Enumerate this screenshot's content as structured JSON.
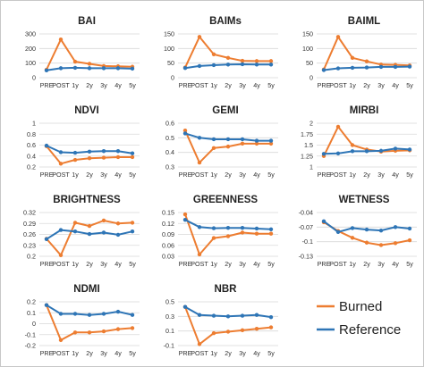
{
  "chart_data": [
    {
      "type": "line",
      "title": "BAI",
      "categories": [
        "PRE",
        "POST",
        "1y",
        "2y",
        "3y",
        "4y",
        "5y"
      ],
      "ylim": [
        0,
        300
      ],
      "yticks": [
        "0",
        "100",
        "200",
        "300"
      ],
      "grid": true,
      "series": [
        {
          "name": "Burned",
          "values": [
            55,
            262,
            110,
            95,
            80,
            78,
            75
          ]
        },
        {
          "name": "Reference",
          "values": [
            50,
            65,
            68,
            65,
            65,
            65,
            62
          ]
        }
      ]
    },
    {
      "type": "line",
      "title": "BAIMs",
      "categories": [
        "PRE",
        "POST",
        "1y",
        "2y",
        "3y",
        "4y",
        "5y"
      ],
      "ylim": [
        0,
        150
      ],
      "yticks": [
        "0",
        "50",
        "100",
        "150"
      ],
      "grid": true,
      "series": [
        {
          "name": "Burned",
          "values": [
            35,
            140,
            80,
            68,
            58,
            57,
            57
          ]
        },
        {
          "name": "Reference",
          "values": [
            33,
            40,
            43,
            45,
            46,
            45,
            45
          ]
        }
      ]
    },
    {
      "type": "line",
      "title": "BAIML",
      "categories": [
        "PRE",
        "POST",
        "1y",
        "2y",
        "3y",
        "4y",
        "5y"
      ],
      "ylim": [
        0,
        150
      ],
      "yticks": [
        "0",
        "50",
        "100",
        "150"
      ],
      "grid": true,
      "series": [
        {
          "name": "Burned",
          "values": [
            28,
            140,
            68,
            56,
            45,
            44,
            42
          ]
        },
        {
          "name": "Reference",
          "values": [
            26,
            32,
            34,
            35,
            37,
            37,
            38
          ]
        }
      ]
    },
    {
      "type": "line",
      "title": "NDVI",
      "categories": [
        "PRE",
        "POST",
        "1y",
        "2y",
        "3y",
        "4y",
        "5y"
      ],
      "ylim": [
        0.2,
        1
      ],
      "yticks": [
        "0.2",
        "0.4",
        "0.6",
        "0.8",
        "1"
      ],
      "grid": true,
      "series": [
        {
          "name": "Burned",
          "values": [
            0.58,
            0.26,
            0.33,
            0.36,
            0.37,
            0.38,
            0.38
          ]
        },
        {
          "name": "Reference",
          "values": [
            0.59,
            0.47,
            0.46,
            0.48,
            0.49,
            0.49,
            0.45
          ]
        }
      ]
    },
    {
      "type": "line",
      "title": "GEMI",
      "categories": [
        "PRE",
        "POST",
        "1y",
        "2y",
        "3y",
        "4y",
        "5y"
      ],
      "ylim": [
        0.3,
        0.6
      ],
      "yticks": [
        "0.3",
        "0.4",
        "0.5",
        "0.6"
      ],
      "grid": true,
      "series": [
        {
          "name": "Burned",
          "values": [
            0.55,
            0.33,
            0.43,
            0.44,
            0.46,
            0.46,
            0.46
          ]
        },
        {
          "name": "Reference",
          "values": [
            0.53,
            0.5,
            0.49,
            0.49,
            0.49,
            0.48,
            0.48
          ]
        }
      ]
    },
    {
      "type": "line",
      "title": "MIRBI",
      "categories": [
        "PRE",
        "POST",
        "1y",
        "2y",
        "3y",
        "4y",
        "5y"
      ],
      "ylim": [
        1,
        2
      ],
      "yticks": [
        "1",
        "1.25",
        "1.5",
        "1.75",
        "2"
      ],
      "grid": true,
      "series": [
        {
          "name": "Burned",
          "values": [
            1.25,
            1.92,
            1.5,
            1.4,
            1.35,
            1.37,
            1.38
          ]
        },
        {
          "name": "Reference",
          "values": [
            1.3,
            1.31,
            1.36,
            1.36,
            1.37,
            1.42,
            1.4
          ]
        }
      ]
    },
    {
      "type": "line",
      "title": "BRIGHTNESS",
      "categories": [
        "PRE",
        "POST",
        "1y",
        "2y",
        "3y",
        "4y",
        "5y"
      ],
      "ylim": [
        0.2,
        0.32
      ],
      "yticks": [
        "0.2",
        "0.23",
        "0.26",
        "0.29",
        "0.32"
      ],
      "grid": true,
      "series": [
        {
          "name": "Burned",
          "values": [
            0.248,
            0.203,
            0.292,
            0.283,
            0.298,
            0.29,
            0.292
          ]
        },
        {
          "name": "Reference",
          "values": [
            0.247,
            0.272,
            0.268,
            0.261,
            0.265,
            0.259,
            0.268
          ]
        }
      ]
    },
    {
      "type": "line",
      "title": "GREENNESS",
      "categories": [
        "PRE",
        "POST",
        "1y",
        "2y",
        "3y",
        "4y",
        "5y"
      ],
      "ylim": [
        0.03,
        0.15
      ],
      "yticks": [
        "0.03",
        "0.06",
        "0.09",
        "0.12",
        "0.15"
      ],
      "grid": true,
      "series": [
        {
          "name": "Burned",
          "values": [
            0.145,
            0.035,
            0.08,
            0.085,
            0.095,
            0.092,
            0.092
          ]
        },
        {
          "name": "Reference",
          "values": [
            0.13,
            0.11,
            0.107,
            0.108,
            0.108,
            0.106,
            0.104
          ]
        }
      ]
    },
    {
      "type": "line",
      "title": "WETNESS",
      "categories": [
        "PRE",
        "POST",
        "1y",
        "2y",
        "3y",
        "4y",
        "5y"
      ],
      "ylim": [
        -0.13,
        -0.04
      ],
      "yticks": [
        "-0.13",
        "-0.1",
        "-0.07",
        "-0.04"
      ],
      "grid": true,
      "series": [
        {
          "name": "Burned",
          "values": [
            -0.06,
            -0.078,
            -0.092,
            -0.102,
            -0.107,
            -0.103,
            -0.097
          ]
        },
        {
          "name": "Reference",
          "values": [
            -0.058,
            -0.08,
            -0.072,
            -0.075,
            -0.077,
            -0.07,
            -0.073
          ]
        }
      ]
    },
    {
      "type": "line",
      "title": "NDMI",
      "categories": [
        "PRE",
        "POST",
        "1y",
        "2y",
        "3y",
        "4y",
        "5y"
      ],
      "ylim": [
        -0.2,
        0.2
      ],
      "yticks": [
        "-0.2",
        "-0.1",
        "0",
        "0.1",
        "0.2"
      ],
      "grid": true,
      "series": [
        {
          "name": "Burned",
          "values": [
            0.17,
            -0.15,
            -0.08,
            -0.08,
            -0.07,
            -0.05,
            -0.04
          ]
        },
        {
          "name": "Reference",
          "values": [
            0.17,
            0.09,
            0.09,
            0.08,
            0.09,
            0.11,
            0.08
          ]
        }
      ]
    },
    {
      "type": "line",
      "title": "NBR",
      "categories": [
        "PRE",
        "POST",
        "1y",
        "2y",
        "3y",
        "4y",
        "5y"
      ],
      "ylim": [
        -0.1,
        0.5
      ],
      "yticks": [
        "-0.1",
        "0.1",
        "0.3",
        "0.5"
      ],
      "grid": true,
      "series": [
        {
          "name": "Burned",
          "values": [
            0.43,
            -0.08,
            0.07,
            0.09,
            0.11,
            0.13,
            0.15
          ]
        },
        {
          "name": "Reference",
          "values": [
            0.43,
            0.32,
            0.31,
            0.3,
            0.31,
            0.32,
            0.29
          ]
        }
      ]
    }
  ],
  "legend": {
    "burned_label": "Burned",
    "reference_label": "Reference"
  },
  "colors": {
    "burned": "#ED7D31",
    "reference": "#2E75B6",
    "grid": "#D9D9D9",
    "border": "#C8C8C8"
  }
}
